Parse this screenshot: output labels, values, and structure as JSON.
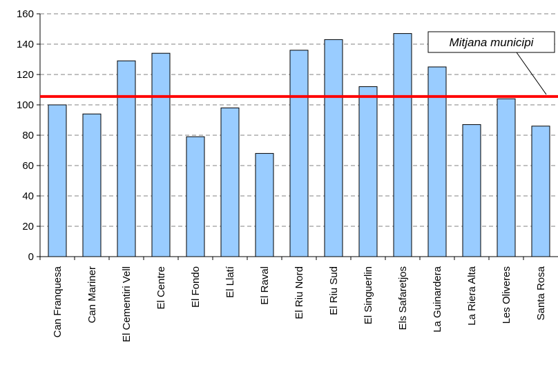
{
  "chart_data": {
    "type": "bar",
    "categories": [
      "Can Franquesa",
      "Can Mariner",
      "El Cementiri Vell",
      "El Centre",
      "El Fondo",
      "El Llatí",
      "El Raval",
      "El Riu Nord",
      "El Riu Sud",
      "El Singuerlin",
      "Els Safaretjos",
      "La Guinardera",
      "La Riera Alta",
      "Les Oliveres",
      "Santa Rosa"
    ],
    "series": [
      {
        "values": [
          100,
          94,
          129,
          134,
          79,
          98,
          68,
          136,
          143,
          112,
          147,
          125,
          87,
          104,
          86
        ]
      }
    ],
    "reference_line": {
      "label": "Mitjana municipi",
      "value": 105.5
    },
    "ylim": [
      0,
      160
    ],
    "yticks": [
      "0",
      "20",
      "40",
      "60",
      "80",
      "100",
      "120",
      "140",
      "160"
    ],
    "grid": true,
    "title": "",
    "xlabel": "",
    "ylabel": "",
    "colors": {
      "bar_fill": "#99ccff",
      "bar_stroke": "#000000",
      "reference_line": "#ff0000",
      "grid": "#808080"
    }
  }
}
